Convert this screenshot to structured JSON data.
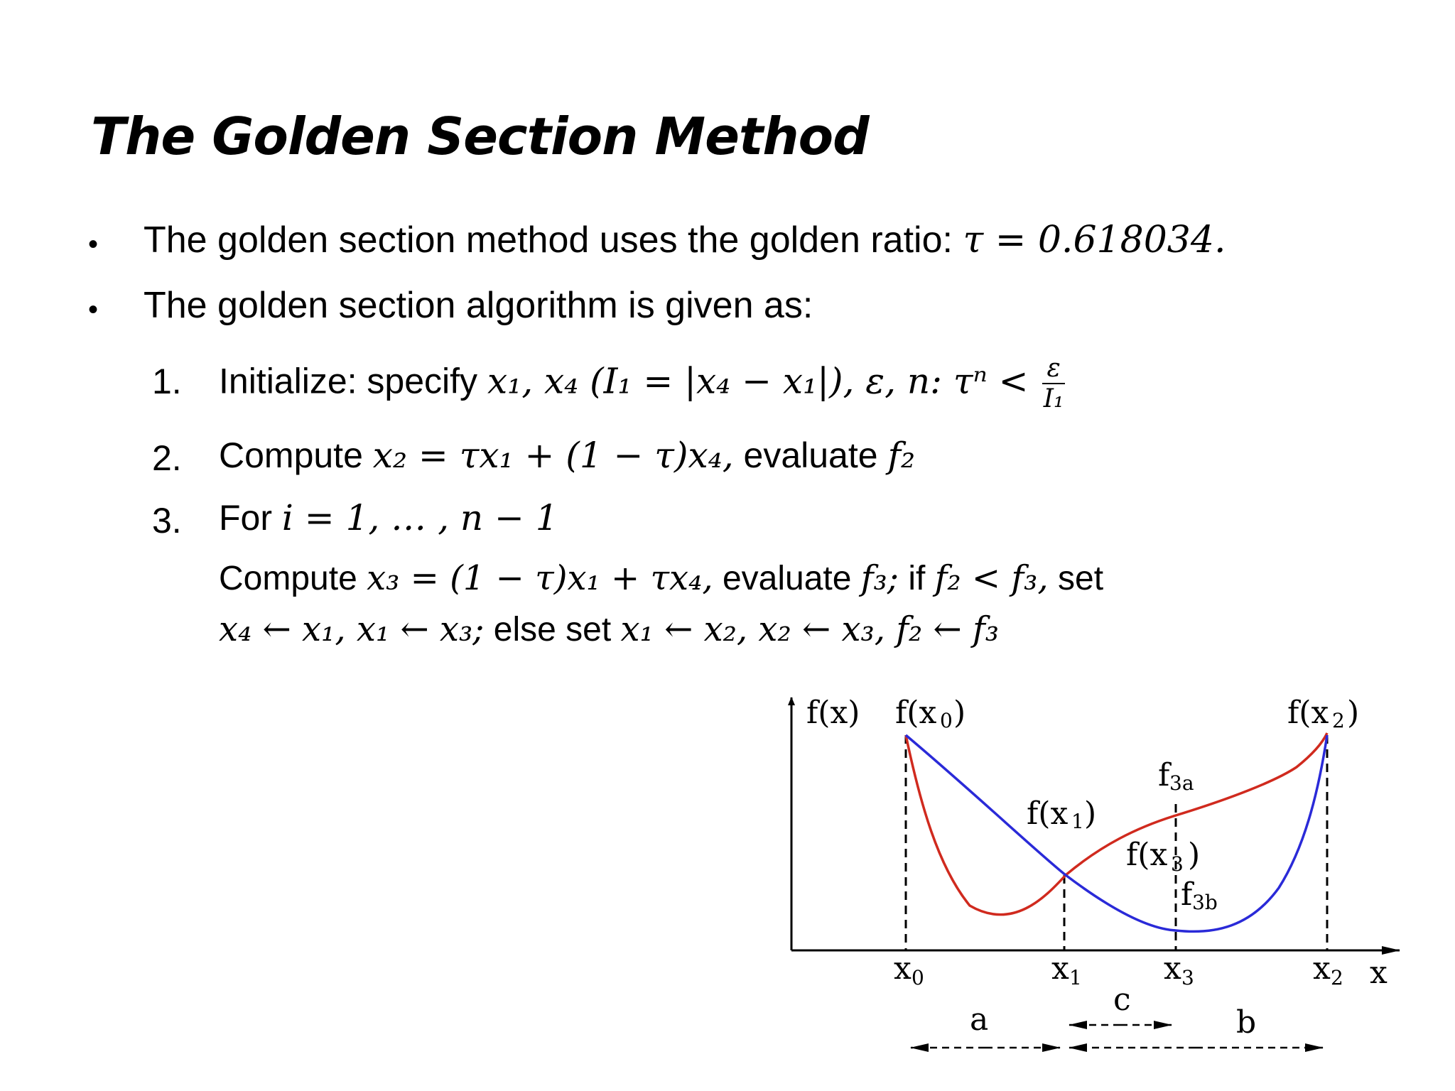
{
  "title": "The Golden Section Method",
  "bullets": [
    {
      "text": "The golden section method uses the golden ratio:",
      "math": "τ = 0.618034."
    },
    {
      "text": "The golden section algorithm is given as:"
    }
  ],
  "steps": [
    {
      "number": "1.",
      "label": "Initialize: specify",
      "math": "x₁, x₄ (I₁ = |x₄ − x₁|),  ε,  n: τⁿ <",
      "frac_num": "ε",
      "frac_den": "I₁"
    },
    {
      "number": "2.",
      "label": "Compute",
      "math": "x₂ = τx₁ + (1 − τ)x₄,",
      "tail": "evaluate",
      "tail_math": "f₂"
    },
    {
      "number": "3.",
      "label": "For",
      "math": "i = 1, … , n − 1"
    }
  ],
  "step3_detail": {
    "line1_a": "Compute",
    "line1_m1": "x₃ = (1 − τ)x₁ + τx₄,",
    "line1_b": "evaluate",
    "line1_m2": "f₃;",
    "line1_c": "if",
    "line1_m3": "f₂ < f₃,",
    "line1_d": "set",
    "line2_m1": "x₄ ← x₁,  x₁ ← x₃;",
    "line2_a": "else set",
    "line2_m2": "x₁ ← x₂,  x₂ ← x₃, f₂ ← f₃"
  },
  "figure": {
    "labels": {
      "fx": "f(x)",
      "fx0": "f(x",
      "fx0_sub": "0",
      "fx2": "f(x",
      "fx2_sub": "2",
      "fx1": "f(x",
      "fx1_sub": "1",
      "fx3": "f(x",
      "fx3_sub": "3",
      "f3a": "f",
      "f3a_sub": "3a",
      "f3b": "f",
      "f3b_sub": "3b",
      "close": ")",
      "x0": "x",
      "x0_sub": "0",
      "x1": "x",
      "x1_sub": "1",
      "x3": "x",
      "x3_sub": "3",
      "x2": "x",
      "x2_sub": "2",
      "x": "x",
      "a": "a",
      "b": "b",
      "c": "c"
    },
    "colors": {
      "red_curve": "#d02a1e",
      "blue_curve": "#2a2ad8"
    }
  }
}
